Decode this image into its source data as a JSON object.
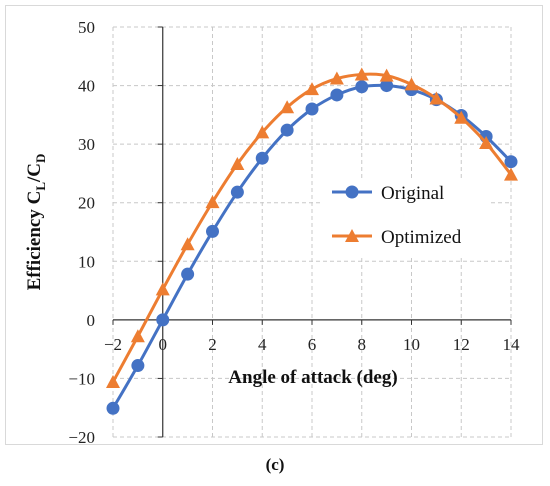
{
  "chart_data": {
    "type": "line",
    "title": "",
    "xlabel": "Angle of attack (deg)",
    "ylabel_main": "Efficiency C",
    "ylabel_sub1": "L",
    "ylabel_mid": "/C",
    "ylabel_sub2": "D",
    "xlim": [
      -2,
      14
    ],
    "ylim": [
      -20,
      50
    ],
    "x_ticks": [
      -2,
      0,
      2,
      4,
      6,
      8,
      10,
      12,
      14
    ],
    "x_tick_labels": [
      "−2",
      "0",
      "2",
      "4",
      "6",
      "8",
      "10",
      "12",
      "14"
    ],
    "y_ticks": [
      -20,
      -10,
      0,
      10,
      20,
      30,
      40,
      50
    ],
    "y_tick_labels": [
      "−20",
      "−10",
      "0",
      "10",
      "20",
      "30",
      "40",
      "50"
    ],
    "grid": true,
    "legend_position": "center-right",
    "x": [
      -2,
      -1,
      0,
      1,
      2,
      3,
      4,
      5,
      6,
      7,
      8,
      9,
      10,
      11,
      12,
      13,
      14
    ],
    "series": [
      {
        "name": "Original",
        "color": "#4472C4",
        "marker": "circle",
        "values": [
          -15.1,
          -7.8,
          0.0,
          7.8,
          15.1,
          21.8,
          27.6,
          32.4,
          36.0,
          38.4,
          39.8,
          40.0,
          39.3,
          37.6,
          34.9,
          31.3,
          27.0
        ]
      },
      {
        "name": "Optimized",
        "color": "#ED7D31",
        "marker": "triangle",
        "values": [
          -10.6,
          -2.8,
          5.2,
          12.9,
          20.1,
          26.6,
          32.0,
          36.3,
          39.4,
          41.2,
          41.9,
          41.7,
          40.2,
          37.8,
          34.5,
          30.2,
          24.8
        ]
      }
    ]
  },
  "panel_label": "(c)"
}
